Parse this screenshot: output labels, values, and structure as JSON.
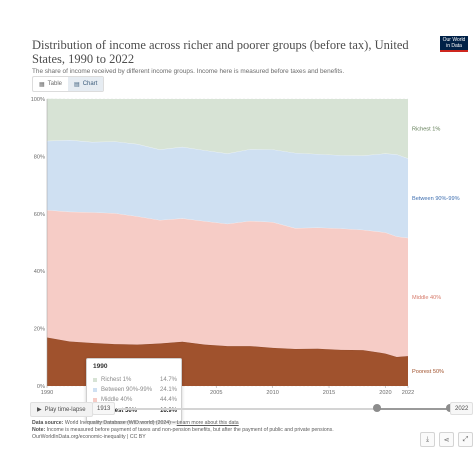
{
  "header": {
    "title": "Distribution of income across richer and poorer groups (before tax), United States, 1990 to 2022",
    "subtitle": "The share of income received by different income groups. Income here is measured before taxes and benefits.",
    "logo_line1": "Our World",
    "logo_line2": "in Data"
  },
  "tabs": [
    {
      "label": "Table",
      "icon": "table-icon",
      "active": false
    },
    {
      "label": "Chart",
      "icon": "chart-icon",
      "active": true
    }
  ],
  "chart_data": {
    "type": "area",
    "stacked": true,
    "x": [
      1990,
      1992,
      1994,
      1996,
      1998,
      2000,
      2002,
      2004,
      2006,
      2008,
      2010,
      2012,
      2014,
      2016,
      2018,
      2020,
      2021,
      2022
    ],
    "series": [
      {
        "name": "Poorest 50%",
        "color": "#a0522d",
        "values": [
          16.9,
          15.5,
          15.0,
          14.6,
          14.4,
          14.8,
          15.4,
          14.4,
          13.9,
          13.9,
          13.3,
          12.9,
          13.0,
          12.6,
          12.5,
          11.3,
          10.1,
          10.4
        ]
      },
      {
        "name": "Middle 40%",
        "color": "#f6ccc6",
        "values": [
          44.4,
          45.2,
          45.5,
          45.6,
          44.7,
          43.0,
          43.0,
          43.0,
          42.6,
          43.6,
          43.8,
          42.1,
          42.2,
          42.3,
          41.9,
          42.2,
          42.0,
          41.2
        ]
      },
      {
        "name": "Between 90%-99%",
        "color": "#cfe0f2",
        "values": [
          24.1,
          25.0,
          24.5,
          25.0,
          25.2,
          24.6,
          24.9,
          24.7,
          24.5,
          25.0,
          25.3,
          26.2,
          25.6,
          25.5,
          25.9,
          27.5,
          28.6,
          27.7
        ]
      },
      {
        "name": "Richest 1%",
        "color": "#d7e3d5",
        "values": [
          14.7,
          14.3,
          15.0,
          14.8,
          15.7,
          17.6,
          16.7,
          17.9,
          19.0,
          17.5,
          17.6,
          18.8,
          19.2,
          19.6,
          19.7,
          19.0,
          19.3,
          20.7
        ]
      }
    ],
    "end_labels": [
      {
        "text": "Richest 1%",
        "color": "#5d7a52"
      },
      {
        "text": "Between 90%-99%",
        "color": "#3f6fb0"
      },
      {
        "text": "Middle 40%",
        "color": "#d67a6a"
      },
      {
        "text": "Poorest 50%",
        "color": "#a0522d"
      }
    ],
    "y_ticks": [
      "0%",
      "20%",
      "40%",
      "60%",
      "80%",
      "100%"
    ],
    "x_ticks": [
      "1990",
      "2000",
      "2005",
      "2010",
      "2015",
      "2020",
      "2022"
    ],
    "ylim": [
      0,
      100
    ],
    "xlim": [
      1990,
      2022
    ],
    "title": "Distribution of income across richer and poorer groups (before tax), United States, 1990 to 2022",
    "xlabel": "",
    "ylabel": ""
  },
  "tooltip": {
    "year": "1990",
    "rows": [
      {
        "name": "Richest 1%",
        "value": "14.7%",
        "color": "#d7e3d5",
        "focus": false
      },
      {
        "name": "Between 90%-99%",
        "value": "24.1%",
        "color": "#cfe0f2",
        "focus": false
      },
      {
        "name": "Middle 40%",
        "value": "44.4%",
        "color": "#f6ccc6",
        "focus": false
      },
      {
        "name": "Poorest 50%",
        "value": "16.9%",
        "color": "#a0522d",
        "focus": true
      }
    ]
  },
  "controls": {
    "play_label": "Play time-lapse",
    "start_year": "1913",
    "end_year": "2022",
    "range_start_fraction": 0.78,
    "range_end_fraction": 1.0
  },
  "footer": {
    "source_label": "Data source:",
    "source_text": "World Inequality Database (WID.world) (2024) –",
    "source_link": "Learn more about this data",
    "note_label": "Note:",
    "note_text": "Income is measured before payment of taxes and non-pension benefits, but after the payment of public and private pensions.",
    "credit": "OurWorldInData.org/economic-inequality | CC BY"
  }
}
